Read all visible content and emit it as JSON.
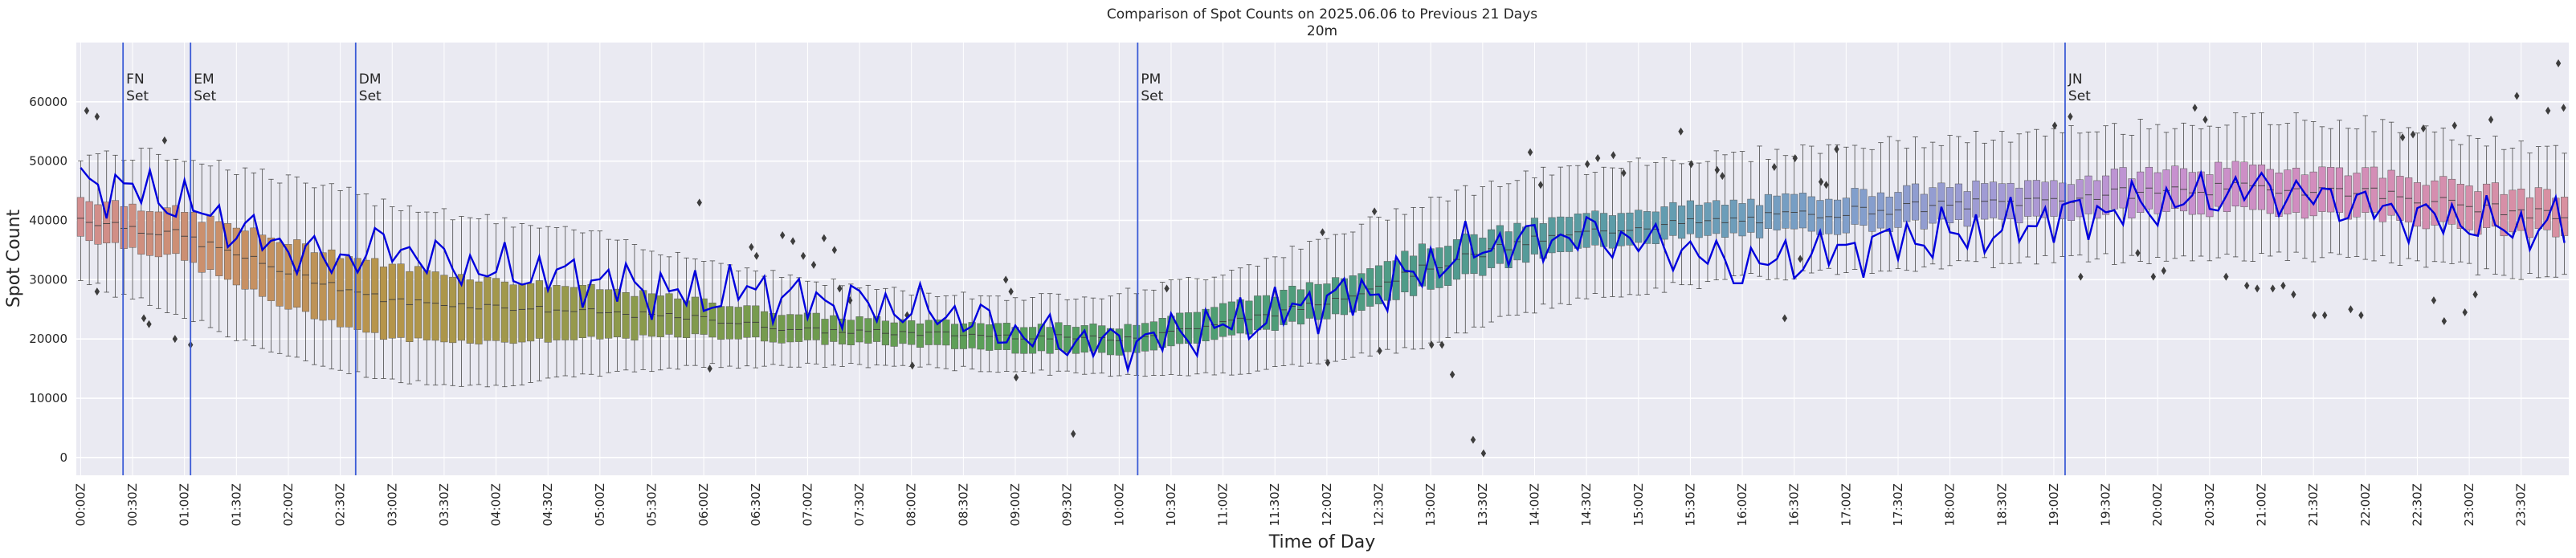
{
  "chart_data": {
    "type": "box",
    "title": "Comparison of Spot Counts on 2025.06.06 to Previous 21 Days",
    "subtitle": "20m",
    "xlabel": "Time of Day",
    "ylabel": "Spot Count",
    "ylim": [
      -3000,
      70000
    ],
    "yticks": [
      0,
      10000,
      20000,
      30000,
      40000,
      50000,
      60000
    ],
    "ytick_labels": [
      "0",
      "10000",
      "20000",
      "30000",
      "40000",
      "50000",
      "60000"
    ],
    "grid": true,
    "bin_minutes": 5,
    "n_bins": 288,
    "xtick_labels": [
      "00:00Z",
      "00:30Z",
      "01:00Z",
      "01:30Z",
      "02:00Z",
      "02:30Z",
      "03:00Z",
      "03:30Z",
      "04:00Z",
      "04:30Z",
      "05:00Z",
      "05:30Z",
      "06:00Z",
      "06:30Z",
      "07:00Z",
      "07:30Z",
      "08:00Z",
      "08:30Z",
      "09:00Z",
      "09:30Z",
      "10:00Z",
      "10:30Z",
      "11:00Z",
      "11:30Z",
      "12:00Z",
      "12:30Z",
      "13:00Z",
      "13:30Z",
      "14:00Z",
      "14:30Z",
      "15:00Z",
      "15:30Z",
      "16:00Z",
      "16:30Z",
      "17:00Z",
      "17:30Z",
      "18:00Z",
      "18:30Z",
      "19:00Z",
      "19:30Z",
      "20:00Z",
      "20:30Z",
      "21:00Z",
      "21:30Z",
      "22:00Z",
      "22:30Z",
      "23:00Z",
      "23:30Z"
    ],
    "box_profile": {
      "hours": [
        0,
        1,
        2,
        3,
        4,
        5,
        6,
        7,
        8,
        9,
        10,
        11,
        12,
        13,
        14,
        15,
        16,
        17,
        18,
        19,
        20,
        21,
        22,
        23,
        24
      ],
      "median": [
        40500,
        37500,
        31500,
        26500,
        25500,
        24500,
        23500,
        21500,
        21000,
        20500,
        20000,
        22500,
        26000,
        32000,
        36500,
        39000,
        40000,
        41500,
        42500,
        43500,
        45000,
        45500,
        45000,
        42500,
        40500
      ],
      "q1": [
        37500,
        33500,
        25500,
        20000,
        19500,
        20000,
        20500,
        19500,
        19000,
        18000,
        17500,
        20000,
        23500,
        28500,
        33500,
        36500,
        37500,
        38500,
        39500,
        40500,
        41500,
        41500,
        41000,
        38500,
        37500
      ],
      "q3": [
        44000,
        41500,
        36500,
        32500,
        30000,
        28500,
        26500,
        24000,
        23000,
        22500,
        22000,
        25500,
        29500,
        35500,
        39500,
        42000,
        43000,
        44500,
        45500,
        46500,
        48500,
        49000,
        48500,
        46000,
        44000
      ],
      "wlo": [
        30000,
        24000,
        17000,
        13000,
        12000,
        14000,
        15500,
        15500,
        15500,
        14500,
        14000,
        14000,
        16000,
        19000,
        25000,
        28000,
        30000,
        31500,
        32500,
        33500,
        33500,
        34000,
        33500,
        32000,
        30000
      ],
      "whi": [
        51000,
        51000,
        47000,
        43000,
        40000,
        37500,
        33500,
        30000,
        28000,
        27000,
        27500,
        31000,
        36500,
        43500,
        47500,
        50000,
        51000,
        52500,
        53500,
        54500,
        56000,
        57000,
        56500,
        54000,
        51000
      ]
    },
    "palette_stops": [
      {
        "hour": 0,
        "color": "#d38e90"
      },
      {
        "hour": 1.5,
        "color": "#c99066"
      },
      {
        "hour": 3,
        "color": "#b5954a"
      },
      {
        "hour": 5,
        "color": "#929a4c"
      },
      {
        "hour": 7,
        "color": "#6f9b4e"
      },
      {
        "hour": 9,
        "color": "#58a05a"
      },
      {
        "hour": 11,
        "color": "#4f9e72"
      },
      {
        "hour": 13,
        "color": "#4f9b8a"
      },
      {
        "hour": 15,
        "color": "#5e9cab"
      },
      {
        "hour": 17,
        "color": "#7f9fcb"
      },
      {
        "hour": 18.5,
        "color": "#a39bd5"
      },
      {
        "hour": 20,
        "color": "#c592d2"
      },
      {
        "hour": 21.5,
        "color": "#d28dbe"
      },
      {
        "hour": 24,
        "color": "#d8909f"
      }
    ],
    "today_series": {
      "name": "2025.06.06",
      "color": "#0000dd",
      "profile_hours": [
        0,
        0.5,
        1,
        1.5,
        2,
        2.5,
        3,
        3.5,
        4,
        4.5,
        5,
        5.5,
        6,
        6.5,
        7,
        7.5,
        8,
        8.5,
        9,
        9.5,
        10,
        10.5,
        11,
        11.5,
        12,
        12.5,
        13,
        13.5,
        14,
        14.5,
        15,
        15.5,
        16,
        16.5,
        17,
        17.5,
        18,
        18.5,
        19,
        19.5,
        20,
        20.5,
        21,
        21.5,
        22,
        22.5,
        23,
        23.5,
        24
      ],
      "profile_values": [
        46000,
        45500,
        43000,
        39000,
        35500,
        33000,
        36000,
        33000,
        31500,
        31000,
        30000,
        28500,
        27000,
        28500,
        26500,
        26000,
        25000,
        24000,
        21000,
        20000,
        19000,
        20500,
        22000,
        24000,
        26500,
        28000,
        32000,
        35500,
        36500,
        37500,
        36500,
        35000,
        32000,
        33500,
        35000,
        36500,
        37500,
        38000,
        40500,
        41500,
        42500,
        44000,
        45500,
        44000,
        42500,
        40500,
        40000,
        38500,
        39500
      ]
    },
    "outlier_points": [
      [
        0.1,
        58500
      ],
      [
        0.2,
        57500
      ],
      [
        0.2,
        28000
      ],
      [
        0.65,
        23500
      ],
      [
        0.7,
        22500
      ],
      [
        0.85,
        53500
      ],
      [
        0.95,
        20000
      ],
      [
        1.1,
        19000
      ],
      [
        6.0,
        43000
      ],
      [
        6.1,
        15000
      ],
      [
        6.5,
        35500
      ],
      [
        6.55,
        34000
      ],
      [
        6.8,
        37500
      ],
      [
        6.9,
        36500
      ],
      [
        7.0,
        34000
      ],
      [
        7.1,
        32500
      ],
      [
        7.2,
        37000
      ],
      [
        7.3,
        35000
      ],
      [
        7.35,
        28500
      ],
      [
        7.45,
        26500
      ],
      [
        8.0,
        24000
      ],
      [
        8.05,
        15500
      ],
      [
        8.95,
        30000
      ],
      [
        9.0,
        28000
      ],
      [
        9.05,
        13500
      ],
      [
        9.6,
        4000
      ],
      [
        10.5,
        28500
      ],
      [
        12.0,
        38000
      ],
      [
        12.05,
        16000
      ],
      [
        12.5,
        41500
      ],
      [
        12.55,
        18000
      ],
      [
        13.05,
        19000
      ],
      [
        13.15,
        19000
      ],
      [
        13.25,
        14000
      ],
      [
        13.45,
        3000
      ],
      [
        13.55,
        700
      ],
      [
        14.0,
        51500
      ],
      [
        14.1,
        46000
      ],
      [
        14.55,
        49500
      ],
      [
        14.65,
        50500
      ],
      [
        14.8,
        51000
      ],
      [
        14.9,
        48000
      ],
      [
        15.45,
        55000
      ],
      [
        15.55,
        49500
      ],
      [
        15.8,
        48500
      ],
      [
        15.85,
        47500
      ],
      [
        16.35,
        49000
      ],
      [
        16.45,
        23500
      ],
      [
        16.55,
        50500
      ],
      [
        16.6,
        33500
      ],
      [
        16.8,
        46500
      ],
      [
        16.85,
        46000
      ],
      [
        16.95,
        52000
      ],
      [
        19.05,
        56000
      ],
      [
        19.2,
        57500
      ],
      [
        19.3,
        30500
      ],
      [
        19.85,
        34500
      ],
      [
        20.0,
        30500
      ],
      [
        20.1,
        31500
      ],
      [
        20.4,
        59000
      ],
      [
        20.5,
        57000
      ],
      [
        20.7,
        30500
      ],
      [
        20.9,
        29000
      ],
      [
        21.0,
        28500
      ],
      [
        21.15,
        28500
      ],
      [
        21.25,
        29000
      ],
      [
        21.35,
        27500
      ],
      [
        21.55,
        24000
      ],
      [
        21.65,
        24000
      ],
      [
        21.9,
        25000
      ],
      [
        22.0,
        24000
      ],
      [
        22.4,
        54000
      ],
      [
        22.5,
        54500
      ],
      [
        22.6,
        55500
      ],
      [
        22.7,
        26500
      ],
      [
        22.8,
        23000
      ],
      [
        22.9,
        56000
      ],
      [
        23.0,
        24500
      ],
      [
        23.1,
        27500
      ],
      [
        23.25,
        57000
      ],
      [
        23.5,
        61000
      ],
      [
        23.8,
        58500
      ],
      [
        23.9,
        66500
      ],
      [
        23.95,
        59000
      ]
    ],
    "vertical_lines": [
      {
        "label": "FN\nSet",
        "hour": 0.45
      },
      {
        "label": "EM\nSet",
        "hour": 1.1
      },
      {
        "label": "DM\nSet",
        "hour": 2.69
      },
      {
        "label": "PM\nSet",
        "hour": 10.22
      },
      {
        "label": "JN\nSet",
        "hour": 19.15
      }
    ]
  }
}
